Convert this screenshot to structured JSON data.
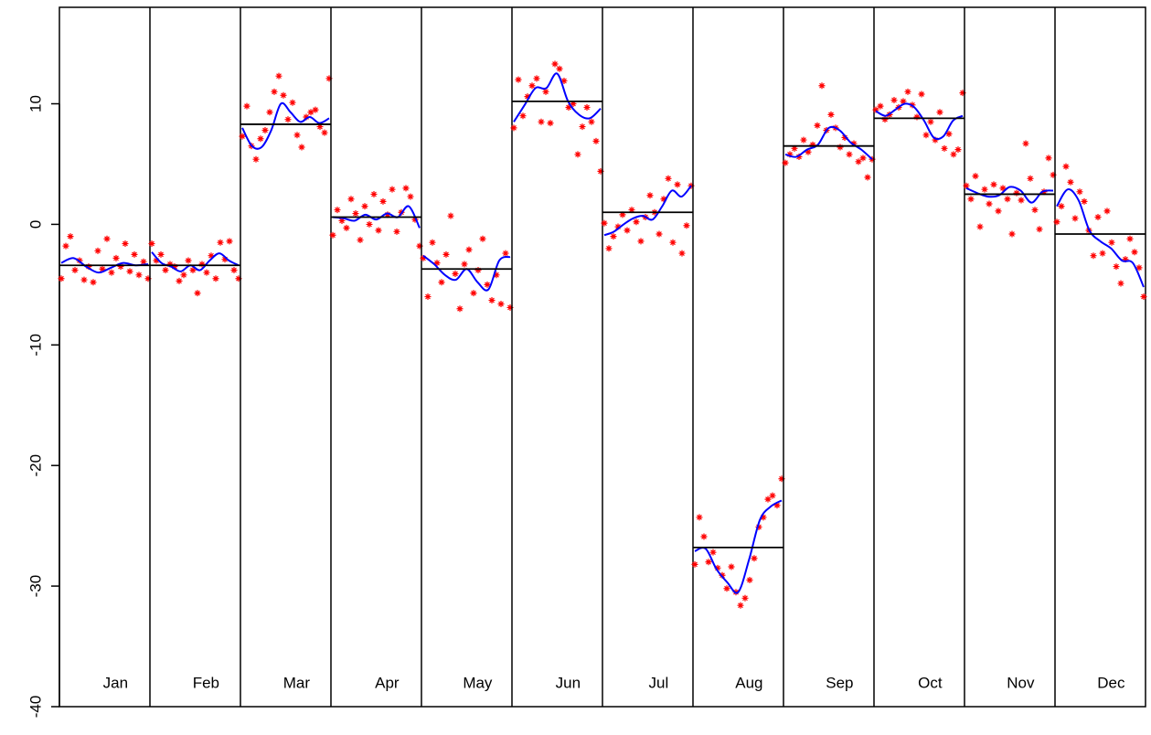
{
  "chart_data": {
    "type": "monthplot",
    "categories": [
      "Jan",
      "Feb",
      "Mar",
      "Apr",
      "May",
      "Jun",
      "Jul",
      "Aug",
      "Sep",
      "Oct",
      "Nov",
      "Dec"
    ],
    "point_color": "#ff0000",
    "smooth_color": "#0000ff",
    "mean_color": "#000000",
    "ylim": [
      -40,
      18
    ],
    "yticks": [
      -40,
      -30,
      -20,
      -10,
      0,
      10
    ],
    "panels": [
      {
        "points": [
          -4.5,
          -1.8,
          -1.0,
          -3.8,
          -3.0,
          -4.6,
          -3.5,
          -4.8,
          -2.2,
          -3.7,
          -1.2,
          -4.0,
          -2.8,
          -3.5,
          -1.6,
          -3.9,
          -2.5,
          -4.2,
          -3.1,
          -4.5
        ],
        "smooth": [
          -3.2,
          -2.8,
          -3.5,
          -4.0,
          -3.6,
          -3.2,
          -3.4,
          -3.3
        ],
        "mean": -3.4
      },
      {
        "points": [
          -1.6,
          -3.0,
          -2.5,
          -3.8,
          -3.3,
          -3.5,
          -4.7,
          -4.2,
          -3.0,
          -3.8,
          -5.7,
          -3.3,
          -4.0,
          -2.6,
          -4.5,
          -1.5,
          -2.9,
          -1.4,
          -3.8,
          -4.5
        ],
        "smooth": [
          -2.3,
          -3.2,
          -3.5,
          -3.9,
          -3.4,
          -3.8,
          -3.0,
          -2.4,
          -3.0,
          -3.4
        ],
        "mean": -3.4
      },
      {
        "points": [
          7.3,
          9.8,
          6.5,
          5.4,
          7.1,
          7.8,
          9.3,
          11.0,
          12.3,
          10.7,
          8.7,
          10.1,
          7.4,
          6.4,
          8.9,
          9.3,
          9.5,
          8.1,
          7.6,
          12.1
        ],
        "smooth": [
          8.0,
          6.5,
          6.4,
          7.8,
          10.0,
          9.3,
          8.5,
          8.9,
          8.4,
          8.8
        ],
        "mean": 8.3
      },
      {
        "points": [
          -0.9,
          1.2,
          0.3,
          -0.3,
          2.1,
          0.9,
          -1.3,
          1.5,
          0.0,
          2.5,
          -0.5,
          1.9,
          0.8,
          2.9,
          -0.6,
          1.0,
          3.0,
          2.3,
          0.4,
          -1.8
        ],
        "smooth": [
          0.6,
          0.5,
          0.3,
          0.8,
          0.4,
          0.9,
          0.6,
          1.5,
          -0.3
        ],
        "mean": 0.6
      },
      {
        "points": [
          -2.8,
          -6.0,
          -1.5,
          -3.2,
          -4.8,
          -2.5,
          0.7,
          -4.1,
          -7.0,
          -3.3,
          -2.1,
          -5.7,
          -3.8,
          -1.2,
          -5.0,
          -6.3,
          -4.2,
          -6.6,
          -2.4,
          -6.9
        ],
        "smooth": [
          -2.6,
          -3.3,
          -4.2,
          -4.6,
          -3.7,
          -4.8,
          -5.4,
          -3.0,
          -2.7
        ],
        "mean": -3.7
      },
      {
        "points": [
          8.0,
          12.0,
          9.0,
          10.6,
          11.5,
          12.1,
          8.5,
          11.0,
          8.4,
          13.3,
          12.9,
          11.9,
          9.7,
          10.0,
          5.8,
          8.1,
          9.7,
          8.5,
          6.9,
          4.4
        ],
        "smooth": [
          8.5,
          9.9,
          11.3,
          11.3,
          12.5,
          10.2,
          9.1,
          8.8,
          9.6
        ],
        "mean": 10.2
      },
      {
        "points": [
          0.1,
          -2.0,
          -1.0,
          -0.2,
          0.8,
          -0.5,
          1.2,
          0.2,
          -1.4,
          0.6,
          2.4,
          1.0,
          -0.8,
          2.1,
          3.8,
          -1.5,
          3.3,
          -2.4,
          -0.1,
          3.2
        ],
        "smooth": [
          -0.9,
          -0.6,
          0.0,
          0.5,
          0.7,
          0.4,
          1.5,
          2.8,
          2.3,
          3.2
        ],
        "mean": 1.0
      },
      {
        "points": [
          -28.2,
          -24.3,
          -25.9,
          -28.0,
          -27.2,
          -28.5,
          -29.1,
          -30.2,
          -28.4,
          -30.5,
          -31.6,
          -31.0,
          -29.5,
          -27.7,
          -25.1,
          -24.3,
          -22.8,
          -22.5,
          -23.3,
          -21.1
        ],
        "smooth": [
          -27.1,
          -26.9,
          -28.6,
          -29.7,
          -30.5,
          -27.8,
          -24.5,
          -23.4,
          -22.9
        ],
        "mean": -26.8
      },
      {
        "points": [
          5.1,
          5.8,
          6.3,
          5.6,
          7.0,
          6.0,
          6.6,
          8.2,
          11.5,
          7.8,
          9.1,
          8.0,
          6.4,
          7.2,
          5.8,
          6.7,
          5.2,
          5.5,
          3.9,
          5.4
        ],
        "smooth": [
          5.8,
          5.6,
          6.2,
          6.6,
          8.0,
          7.8,
          6.8,
          6.2,
          5.4
        ],
        "mean": 6.5
      },
      {
        "points": [
          9.5,
          9.8,
          8.7,
          9.1,
          10.3,
          9.7,
          10.2,
          11.0,
          9.9,
          8.9,
          10.8,
          7.4,
          8.5,
          7.0,
          9.3,
          6.3,
          7.5,
          5.8,
          6.2,
          10.9
        ],
        "smooth": [
          9.4,
          9.0,
          9.5,
          10.0,
          9.7,
          8.6,
          7.2,
          7.3,
          8.6,
          9.0
        ],
        "mean": 8.8
      },
      {
        "points": [
          3.2,
          2.1,
          4.0,
          -0.2,
          2.9,
          1.7,
          3.3,
          1.1,
          3.0,
          2.1,
          -0.8,
          2.6,
          2.0,
          6.7,
          3.8,
          1.2,
          -0.4,
          2.7,
          5.5,
          4.1
        ],
        "smooth": [
          3.0,
          2.6,
          2.3,
          2.4,
          3.1,
          2.8,
          1.8,
          2.7,
          2.8
        ],
        "mean": 2.5
      },
      {
        "points": [
          0.2,
          1.5,
          4.8,
          3.5,
          0.5,
          2.7,
          1.9,
          -0.5,
          -2.6,
          0.6,
          -2.4,
          1.1,
          -1.5,
          -3.5,
          -4.9,
          -2.9,
          -1.2,
          -2.3,
          -3.6,
          -6.0
        ],
        "smooth": [
          1.5,
          2.9,
          2.0,
          -0.5,
          -1.4,
          -2.0,
          -3.0,
          -3.2,
          -5.2
        ],
        "mean": -0.8
      }
    ]
  }
}
